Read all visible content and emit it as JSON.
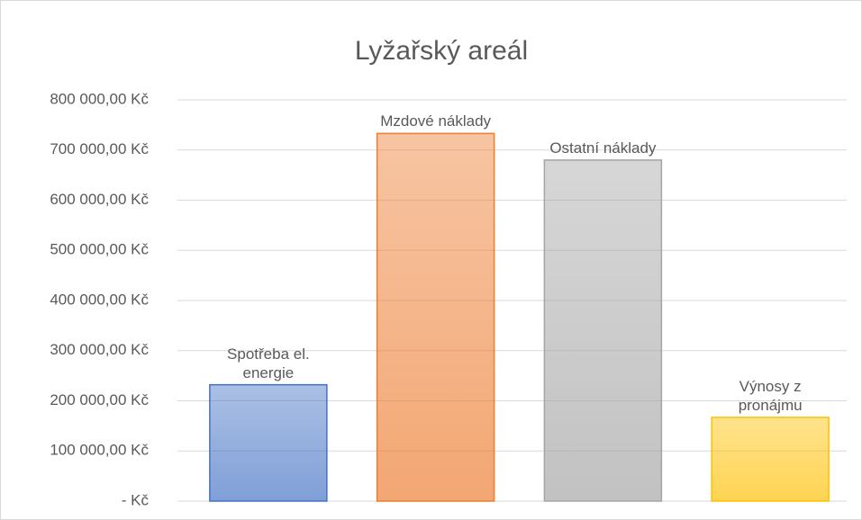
{
  "chart_data": {
    "type": "bar",
    "title": "Lyžařský areál",
    "categories": [
      "Spotřeba el. energie",
      "Mzdové náklady",
      "Ostatní náklady",
      "Výnosy z pronájmu"
    ],
    "values": [
      232000,
      733000,
      680000,
      167000
    ],
    "colors": [
      "#4472c4",
      "#ed7d31",
      "#a5a5a5",
      "#ffc000"
    ],
    "ylim": [
      0,
      800000
    ],
    "yticks": [
      {
        "value": 0,
        "label": "-  Kč"
      },
      {
        "value": 100000,
        "label": "100 000,00 Kč"
      },
      {
        "value": 200000,
        "label": "200 000,00 Kč"
      },
      {
        "value": 300000,
        "label": "300 000,00 Kč"
      },
      {
        "value": 400000,
        "label": "400 000,00 Kč"
      },
      {
        "value": 500000,
        "label": "500 000,00 Kč"
      },
      {
        "value": 600000,
        "label": "600 000,00 Kč"
      },
      {
        "value": 700000,
        "label": "700 000,00 Kč"
      },
      {
        "value": 800000,
        "label": "800 000,00 Kč"
      }
    ],
    "grid": true
  }
}
